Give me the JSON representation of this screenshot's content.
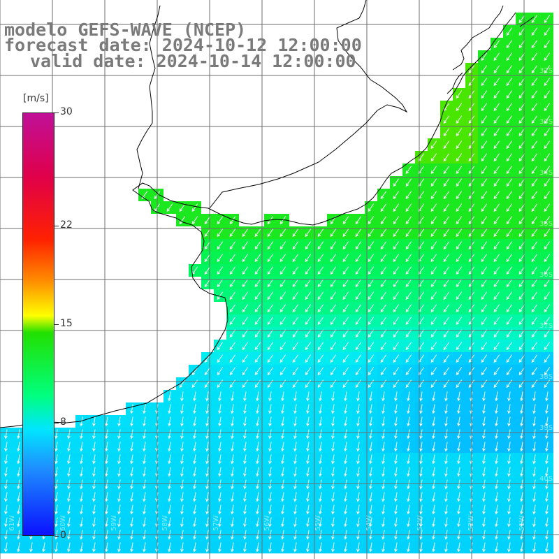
{
  "title": {
    "line1": "modelo GEFS-WAVE (NCEP)",
    "line2": "forecast date: 2024-10-12 12:00:00",
    "line3": "valid date: 2024-10-14 12:00:00"
  },
  "colorbar": {
    "units": "[m/s]",
    "ticks": [
      "30",
      "22",
      "15",
      "8",
      "0"
    ],
    "tick_values": [
      30,
      22,
      15,
      8,
      0
    ]
  },
  "grid": {
    "lat_labels": [
      "32S",
      "33S",
      "34S",
      "35S",
      "36S",
      "37S",
      "38S",
      "39S",
      "40S"
    ],
    "lon_labels": [
      "61W",
      "60W",
      "59W",
      "58W",
      "57W",
      "56W",
      "55W",
      "54W",
      "53W",
      "52W",
      "51W"
    ]
  },
  "map": {
    "variable": "wind speed",
    "wind_direction": "from NE toward SW",
    "region": "Rio de la Plata / Uruguay / southern Brazil coast",
    "colors": {
      "land": "#ffffff",
      "coast": "#000000",
      "grid": "#777777",
      "arrows": "#ffffff"
    }
  }
}
